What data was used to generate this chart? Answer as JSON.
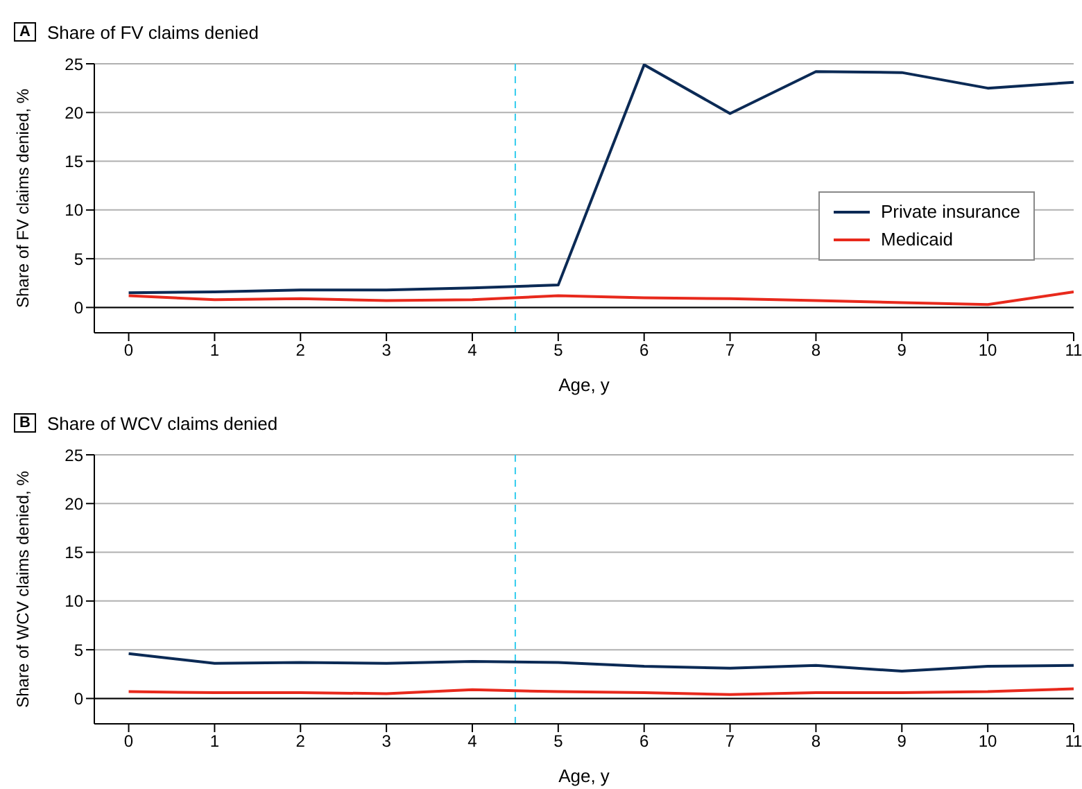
{
  "chart_data": [
    {
      "type": "line",
      "title": "Share of FV claims denied",
      "annotations": [
        "A"
      ],
      "xlabel": "Age, y",
      "ylabel": "Share of FV claims denied, %",
      "x": [
        0,
        1,
        2,
        3,
        4,
        5,
        6,
        7,
        8,
        9,
        10,
        11
      ],
      "xlim": [
        -0.4,
        11
      ],
      "xticks": [
        0,
        1,
        2,
        3,
        4,
        5,
        6,
        7,
        8,
        9,
        10,
        11
      ],
      "ylim": [
        -2.6,
        25
      ],
      "yticks": [
        0,
        5,
        10,
        15,
        20,
        25
      ],
      "grid": "y",
      "legend": "right",
      "marker": "none",
      "line_style": "solid",
      "series": [
        {
          "name": "Private insurance",
          "color": "#0b2a55",
          "values": [
            1.5,
            1.6,
            1.8,
            1.8,
            2.0,
            2.3,
            24.9,
            19.9,
            24.2,
            24.1,
            22.5,
            23.1
          ]
        },
        {
          "name": "Medicaid",
          "color": "#e8291c",
          "values": [
            1.2,
            0.8,
            0.9,
            0.7,
            0.8,
            1.2,
            1.0,
            0.9,
            0.7,
            0.5,
            0.3,
            1.6
          ]
        }
      ],
      "ref_lines": [
        {
          "axis": "x",
          "value": 4.5,
          "color": "#33ccee",
          "line_style": "dashed"
        },
        {
          "axis": "y",
          "value": 0,
          "color": "#000000",
          "line_style": "solid"
        }
      ]
    },
    {
      "type": "line",
      "title": "Share of WCV claims denied",
      "annotations": [
        "B"
      ],
      "xlabel": "Age, y",
      "ylabel": "Share of WCV claims denied, %",
      "x": [
        0,
        1,
        2,
        3,
        4,
        5,
        6,
        7,
        8,
        9,
        10,
        11
      ],
      "xlim": [
        -0.4,
        11
      ],
      "xticks": [
        0,
        1,
        2,
        3,
        4,
        5,
        6,
        7,
        8,
        9,
        10,
        11
      ],
      "ylim": [
        -2.6,
        25
      ],
      "yticks": [
        0,
        5,
        10,
        15,
        20,
        25
      ],
      "grid": "y",
      "marker": "none",
      "line_style": "solid",
      "series": [
        {
          "color": "#0b2a55",
          "values": [
            4.6,
            3.6,
            3.7,
            3.6,
            3.8,
            3.7,
            3.3,
            3.1,
            3.4,
            2.8,
            3.3,
            3.4
          ]
        },
        {
          "color": "#e8291c",
          "values": [
            0.7,
            0.6,
            0.6,
            0.5,
            0.9,
            0.7,
            0.6,
            0.4,
            0.6,
            0.6,
            0.7,
            1.0
          ]
        }
      ],
      "ref_lines": [
        {
          "axis": "x",
          "value": 4.5,
          "color": "#33ccee",
          "line_style": "dashed"
        },
        {
          "axis": "y",
          "value": 0,
          "color": "#000000",
          "line_style": "solid"
        }
      ]
    }
  ]
}
